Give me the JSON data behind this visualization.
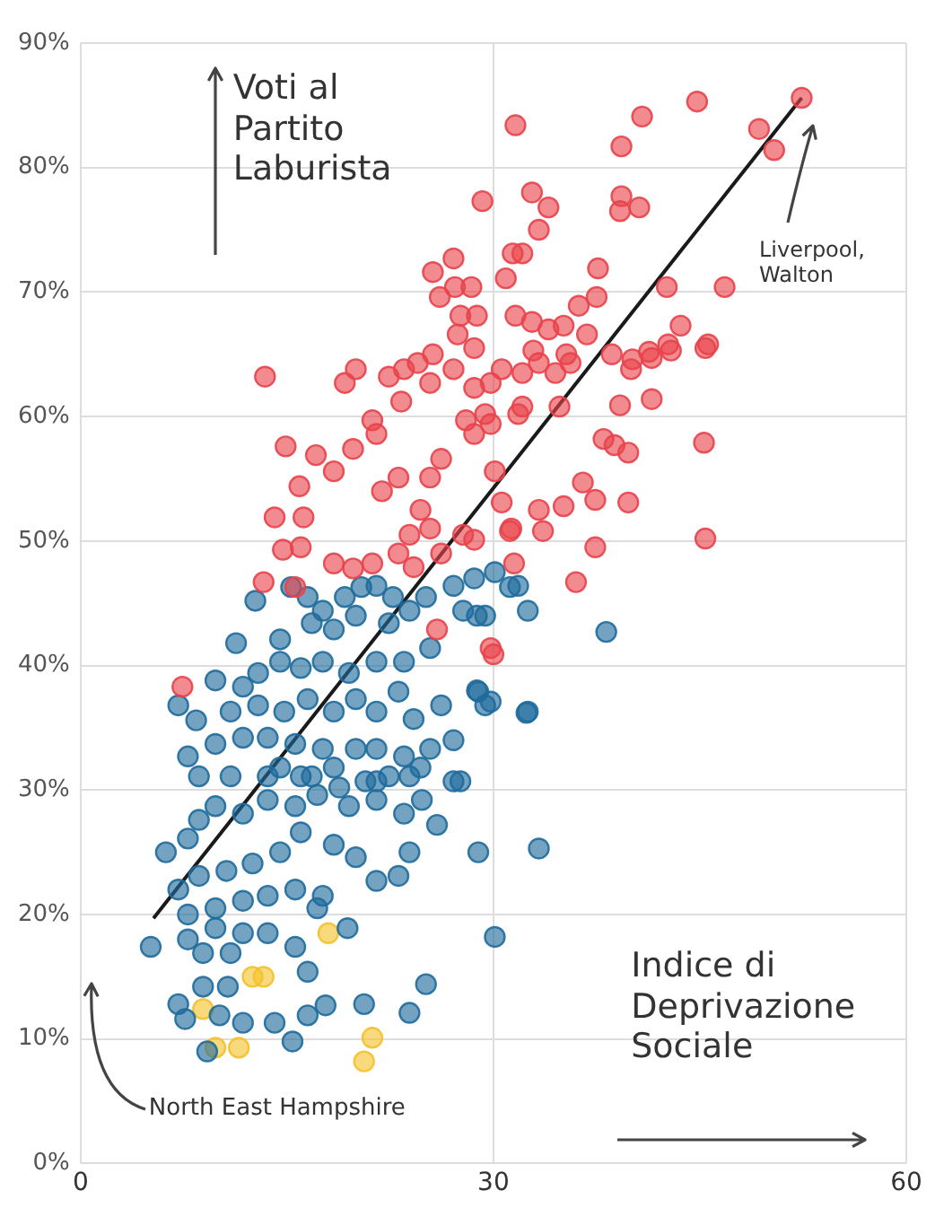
{
  "chart_data": {
    "type": "scatter",
    "xlabel": "Indice di Deprivazione Sociale",
    "ylabel": "Voti al Partito Laburista",
    "xlim": [
      0,
      60
    ],
    "xticks": [
      0,
      30,
      60
    ],
    "ylim": [
      0,
      90
    ],
    "yticks": [
      {
        "value": 0,
        "label": "0%"
      },
      {
        "value": 10,
        "label": "10%"
      },
      {
        "value": 20,
        "label": "20%"
      },
      {
        "value": 30,
        "label": "30%"
      },
      {
        "value": 40,
        "label": "40%"
      },
      {
        "value": 50,
        "label": "50%"
      },
      {
        "value": 60,
        "label": "60%"
      },
      {
        "value": 70,
        "label": "70%"
      },
      {
        "value": 80,
        "label": "80%"
      },
      {
        "value": 90,
        "label": "90%"
      }
    ],
    "grid": true,
    "legend": false,
    "marker": "circle",
    "annotations": [
      "Liverpool, Walton",
      "North East Hampshire"
    ],
    "series": [
      {
        "color": "#e8434b",
        "x": [
          31.6,
          40.8,
          44.8,
          52.4,
          49.3,
          50.4,
          39.3,
          29.2,
          32.8,
          34.0,
          33.3,
          31.4,
          32.1,
          30.9,
          39.3,
          40.6,
          39.2,
          37.6,
          37.5,
          25.6,
          27.1,
          27.2,
          28.4,
          26.1,
          27.6,
          28.8,
          31.6,
          32.8,
          34.0,
          35.1,
          36.2,
          42.6,
          43.6,
          46.8,
          45.6,
          40.1,
          41.3,
          42.7,
          13.4,
          14.9,
          15.9,
          14.1,
          16.2,
          14.7,
          16.0,
          13.3,
          18.4,
          19.8,
          21.2,
          17.1,
          18.4,
          19.8,
          21.2,
          21.5,
          19.2,
          20.0,
          22.4,
          23.5,
          25.4,
          27.1,
          28.6,
          30.6,
          31.8,
          21.9,
          23.1,
          24.7,
          25.4,
          23.9,
          25.4,
          26.2,
          28.6,
          29.4,
          30.1,
          30.6,
          31.3,
          23.1,
          24.2,
          26.2,
          27.8,
          29.8,
          7.4,
          15.6,
          25.9,
          40.0,
          41.5,
          42.9,
          45.4,
          39.2,
          41.5,
          45.3,
          38.0,
          38.8,
          39.8,
          36.5,
          37.4,
          39.8,
          35.1,
          33.3,
          33.6,
          31.2,
          37.4,
          45.4,
          36.0,
          31.5,
          28.6,
          32.1,
          29.8,
          34.8,
          34.5,
          32.9,
          35.3,
          30.0,
          23.3,
          24.5,
          27.4,
          25.6,
          29.8,
          32.1,
          33.3,
          35.6,
          36.8,
          38.6,
          28.0,
          28.6
        ],
        "values": [
          83.4,
          84.1,
          85.3,
          85.6,
          83.1,
          81.4,
          81.7,
          77.3,
          78.0,
          76.8,
          75.0,
          73.1,
          73.1,
          71.1,
          77.7,
          76.8,
          76.5,
          71.9,
          69.6,
          71.6,
          72.7,
          70.4,
          70.4,
          69.6,
          68.1,
          68.1,
          68.1,
          67.6,
          67.0,
          67.3,
          68.9,
          70.4,
          67.3,
          70.4,
          65.8,
          64.6,
          65.2,
          65.8,
          63.2,
          57.6,
          54.4,
          51.9,
          51.9,
          49.3,
          49.5,
          46.7,
          48.2,
          47.8,
          48.2,
          56.9,
          55.6,
          57.4,
          59.7,
          58.6,
          62.7,
          63.8,
          63.2,
          63.8,
          62.7,
          63.8,
          62.3,
          63.8,
          60.2,
          54.0,
          55.1,
          52.5,
          51.0,
          50.5,
          55.1,
          56.6,
          58.6,
          60.2,
          55.6,
          53.1,
          51.0,
          49.0,
          47.9,
          49.0,
          50.5,
          41.4,
          38.3,
          46.3,
          42.9,
          63.8,
          64.7,
          65.3,
          65.5,
          60.9,
          61.4,
          57.9,
          58.2,
          57.7,
          57.1,
          54.7,
          53.3,
          53.1,
          52.8,
          52.5,
          50.8,
          50.8,
          49.5,
          50.2,
          46.7,
          48.2,
          50.1,
          60.8,
          59.4,
          60.8,
          63.5,
          65.3,
          65.0,
          40.9,
          61.2,
          64.3,
          66.6,
          65.0,
          62.7,
          63.5,
          64.3,
          64.3,
          66.6,
          65.0,
          59.7,
          65.5
        ]
      },
      {
        "color": "#1f6b9c",
        "x": [
          12.7,
          15.3,
          16.5,
          17.6,
          19.2,
          20.4,
          21.5,
          22.7,
          20.0,
          18.4,
          16.8,
          14.5,
          11.3,
          22.4,
          23.9,
          25.1,
          27.1,
          28.6,
          30.1,
          31.8,
          32.5,
          27.8,
          29.4,
          25.4,
          23.5,
          21.5,
          19.5,
          17.6,
          16.0,
          14.5,
          12.9,
          11.8,
          9.8,
          7.1,
          8.4,
          10.9,
          12.9,
          14.8,
          16.5,
          18.4,
          20.0,
          21.5,
          23.1,
          24.2,
          26.2,
          28.9,
          29.4,
          27.1,
          25.4,
          23.5,
          21.5,
          20.0,
          17.6,
          15.6,
          13.6,
          11.8,
          9.8,
          7.8,
          32.5,
          8.6,
          10.9,
          13.6,
          16.0,
          18.4,
          21.5,
          23.9,
          27.1,
          31.2,
          28.8,
          38.2,
          28.8,
          29.8,
          32.4,
          27.6,
          14.5,
          16.8,
          18.8,
          20.7,
          22.4,
          24.7,
          6.2,
          7.8,
          8.6,
          9.8,
          11.8,
          13.6,
          15.6,
          17.2,
          19.5,
          21.5,
          23.5,
          24.8,
          25.9,
          28.9,
          7.1,
          8.6,
          10.6,
          12.5,
          14.5,
          16.0,
          18.4,
          20.0,
          21.5,
          23.1,
          23.9,
          7.8,
          9.8,
          11.8,
          13.6,
          15.6,
          17.6,
          7.8,
          9.8,
          11.8,
          13.6,
          15.6,
          17.2,
          19.4,
          5.1,
          8.9,
          10.9,
          16.5,
          8.9,
          10.7,
          7.1,
          7.6,
          10.1,
          11.8,
          14.1,
          15.4,
          16.5,
          17.8,
          20.6,
          23.9,
          25.1,
          9.2,
          30.1,
          33.3
        ],
        "values": [
          45.2,
          46.3,
          45.5,
          44.4,
          45.5,
          46.3,
          46.4,
          45.5,
          44.0,
          42.9,
          43.4,
          42.1,
          41.8,
          43.4,
          44.4,
          45.5,
          46.4,
          47.0,
          47.5,
          46.4,
          44.4,
          44.4,
          44.0,
          41.4,
          40.3,
          40.3,
          39.4,
          40.3,
          39.8,
          40.3,
          39.4,
          38.3,
          38.8,
          36.8,
          35.6,
          36.3,
          36.8,
          36.3,
          37.3,
          36.3,
          37.3,
          36.3,
          37.9,
          35.7,
          36.8,
          37.9,
          36.8,
          34.0,
          33.3,
          32.7,
          33.3,
          33.3,
          33.3,
          33.7,
          34.2,
          34.2,
          33.7,
          32.7,
          36.3,
          31.1,
          31.1,
          31.1,
          31.1,
          31.8,
          30.7,
          31.1,
          30.7,
          46.3,
          44.0,
          42.7,
          38.0,
          37.1,
          36.2,
          30.7,
          31.8,
          31.1,
          30.2,
          30.7,
          31.1,
          31.8,
          25.0,
          26.1,
          27.6,
          28.7,
          28.1,
          29.2,
          28.7,
          29.6,
          28.7,
          29.2,
          28.1,
          29.2,
          27.2,
          25.0,
          22.0,
          23.1,
          23.5,
          24.1,
          25.0,
          26.6,
          25.6,
          24.6,
          22.7,
          23.1,
          25.0,
          20.0,
          20.5,
          21.1,
          21.5,
          22.0,
          21.5,
          18.0,
          18.9,
          18.5,
          18.5,
          17.4,
          20.5,
          18.9,
          17.4,
          16.9,
          16.9,
          15.4,
          14.2,
          14.2,
          12.8,
          11.6,
          11.9,
          11.3,
          11.3,
          9.8,
          11.9,
          12.7,
          12.8,
          12.1,
          14.4,
          9.0,
          18.2,
          25.3
        ]
      },
      {
        "color": "#f4c12c",
        "x": [
          18.0,
          12.5,
          13.3,
          8.9,
          9.8,
          11.5,
          21.2,
          20.6
        ],
        "values": [
          18.5,
          15.0,
          15.0,
          12.4,
          9.3,
          9.3,
          10.1,
          8.2
        ]
      },
      {
        "type": "line",
        "marker": "none",
        "color": "#1a1a1a",
        "x": [
          5.3,
          52.4
        ],
        "values": [
          19.7,
          85.6
        ]
      }
    ]
  }
}
